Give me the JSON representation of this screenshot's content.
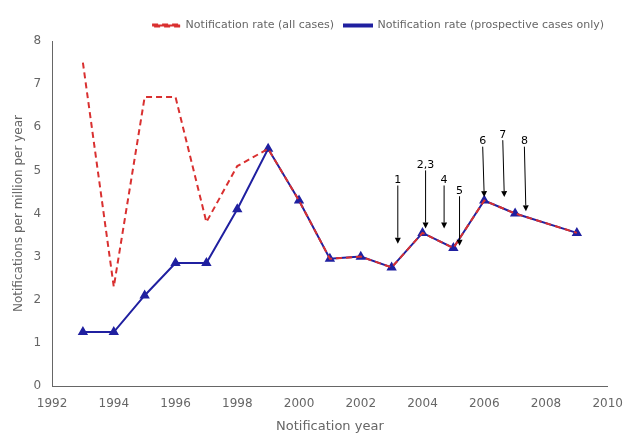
{
  "chart_data": {
    "type": "line",
    "x": [
      1993,
      1994,
      1995,
      1996,
      1997,
      1998,
      1999,
      2000,
      2001,
      2002,
      2003,
      2004,
      2005,
      2006,
      2007,
      2009
    ],
    "series": [
      {
        "name": "Notification rate (all cases)",
        "color": "#d93030",
        "line_style": "dashed",
        "marker": "none",
        "values": [
          7.5,
          2.3,
          6.7,
          6.7,
          3.8,
          5.1,
          5.5,
          4.3,
          2.95,
          3.0,
          2.75,
          3.55,
          3.2,
          4.3,
          4.0,
          3.55
        ]
      },
      {
        "name": "Notification rate (prospective cases only)",
        "color": "#2020a0",
        "line_style": "solid",
        "marker": "triangle",
        "values": [
          1.25,
          1.25,
          2.1,
          2.85,
          2.85,
          4.1,
          5.5,
          4.3,
          2.95,
          3.0,
          2.75,
          3.55,
          3.2,
          4.3,
          4.0,
          3.55
        ]
      }
    ],
    "x_label": "Notification year",
    "y_label": "Notifications per million per year",
    "xlim": [
      1992,
      2010
    ],
    "xticks": [
      1992,
      1994,
      1996,
      1998,
      2000,
      2002,
      2004,
      2006,
      2008,
      2010
    ],
    "ylim": [
      0,
      8
    ],
    "yticks": [
      0,
      1,
      2,
      3,
      4,
      5,
      6,
      7,
      8
    ],
    "grid": false,
    "legend": "upper right",
    "annotations": [
      {
        "text": "1",
        "x": 2003.2,
        "y": 3.3,
        "x_text": 2003.2,
        "y_text": 4.65
      },
      {
        "text": "2,3",
        "x": 2004.1,
        "y": 3.65,
        "x_text": 2004.1,
        "y_text": 5.0
      },
      {
        "text": "4",
        "x": 2004.7,
        "y": 3.65,
        "x_text": 2004.7,
        "y_text": 4.65
      },
      {
        "text": "5",
        "x": 2005.2,
        "y": 3.25,
        "x_text": 2005.2,
        "y_text": 4.4
      },
      {
        "text": "6",
        "x": 2006.0,
        "y": 4.38,
        "x_text": 2005.95,
        "y_text": 5.55
      },
      {
        "text": "7",
        "x": 2006.65,
        "y": 4.38,
        "x_text": 2006.6,
        "y_text": 5.7
      },
      {
        "text": "8",
        "x": 2007.35,
        "y": 4.05,
        "x_text": 2007.3,
        "y_text": 5.55
      }
    ]
  }
}
